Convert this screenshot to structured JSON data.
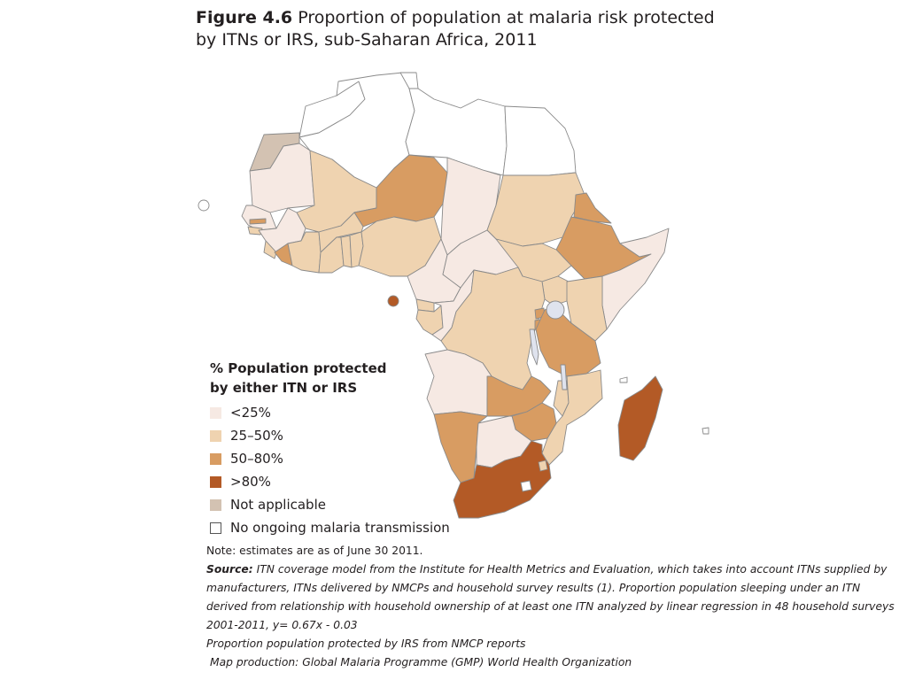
{
  "title": {
    "figure_label": "Figure 4.6",
    "text": "Proportion of population at malaria risk protected by ITNs or IRS, sub-Saharan Africa, 2011"
  },
  "legend": {
    "title_line1": "% Population protected",
    "title_line2": "by either ITN or IRS",
    "items": [
      {
        "label": "<25%",
        "color": "#f6e9e3"
      },
      {
        "label": "25–50%",
        "color": "#efd3b0"
      },
      {
        "label": "50–80%",
        "color": "#d89c62"
      },
      {
        "label": ">80%",
        "color": "#b35a26"
      },
      {
        "label": "Not applicable",
        "color": "#d3c2b2"
      },
      {
        "label": "No ongoing malaria transmission",
        "color": "#ffffff"
      }
    ]
  },
  "notes": {
    "note": "Note: estimates are as of June 30 2011.",
    "source_label": "Source:",
    "source_text": "ITN coverage model from the Institute for Health Metrics and Evaluation, which takes into account ITNs supplied by manufacturers, ITNs delivered by NMCPs and household survey results (1). Proportion population sleeping under an ITN derived from relationship with household ownership of at least one ITN analyzed by linear regression in 48 household surveys 2001-2011, y= 0.67x - 0.03",
    "line_irs": "Proportion population protected by IRS from NMCP reports",
    "line_production": "Map production: Global Malaria Programme (GMP) World Health Organization"
  },
  "map_data": {
    "colors": {
      "lt25": "#f6e9e3",
      "p25_50": "#efd3b0",
      "p50_80": "#d89c62",
      "gt80": "#b35a26",
      "na": "#d3c2b2",
      "none": "#ffffff",
      "water": "#dfe3ee",
      "border": "#8a8a8a"
    }
  }
}
